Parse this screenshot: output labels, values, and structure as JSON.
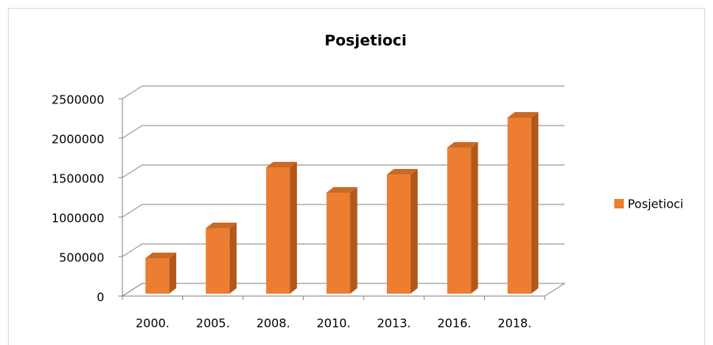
{
  "chart_data": {
    "type": "bar3d",
    "title": "Posjetioci",
    "categories": [
      "2000.",
      "2005.",
      "2008.",
      "2010.",
      "2013.",
      "2016.",
      "2018."
    ],
    "series": [
      {
        "name": "Posjetioci",
        "color": "#ed7d31",
        "values": [
          450000,
          830000,
          1600000,
          1280000,
          1510000,
          1850000,
          2230000
        ]
      }
    ],
    "ylim": [
      0,
      2500000
    ],
    "yticks": [
      0,
      500000,
      1000000,
      1500000,
      2000000,
      2500000
    ],
    "grid": true,
    "legend": "right"
  }
}
